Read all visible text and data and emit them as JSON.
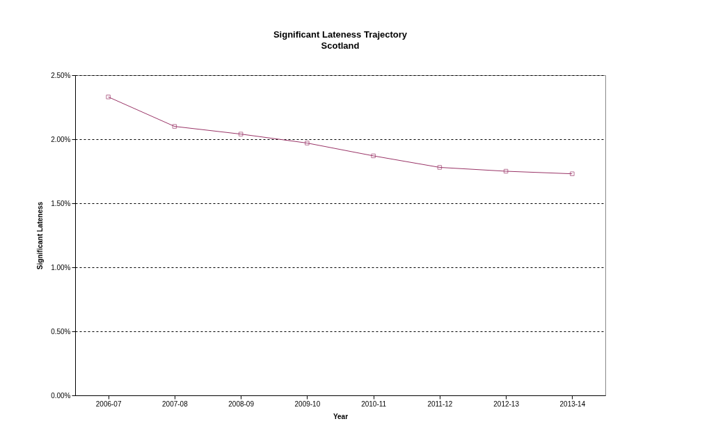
{
  "chart_data": {
    "type": "line",
    "title": "Significant Lateness Trajectory",
    "subtitle": "Scotland",
    "xlabel": "Year",
    "ylabel": "Significant Lateness",
    "categories": [
      "2006-07",
      "2007-08",
      "2008-09",
      "2009-10",
      "2010-11",
      "2011-12",
      "2012-13",
      "2013-14"
    ],
    "series": [
      {
        "color": "#993366",
        "values": [
          2.33,
          2.1,
          2.04,
          1.97,
          1.87,
          1.78,
          1.75,
          1.73
        ]
      }
    ],
    "ylim": [
      0,
      2.5
    ],
    "yticks": [
      {
        "value": 0,
        "label": "0.00%"
      },
      {
        "value": 0.5,
        "label": "0.50%"
      },
      {
        "value": 1,
        "label": "1.00%"
      },
      {
        "value": 1.5,
        "label": "1.50%"
      },
      {
        "value": 2,
        "label": "2.00%"
      },
      {
        "value": 2.5,
        "label": "2.50%"
      }
    ],
    "grid": "y",
    "marker": "square",
    "line_style": "solid",
    "legend": false
  }
}
